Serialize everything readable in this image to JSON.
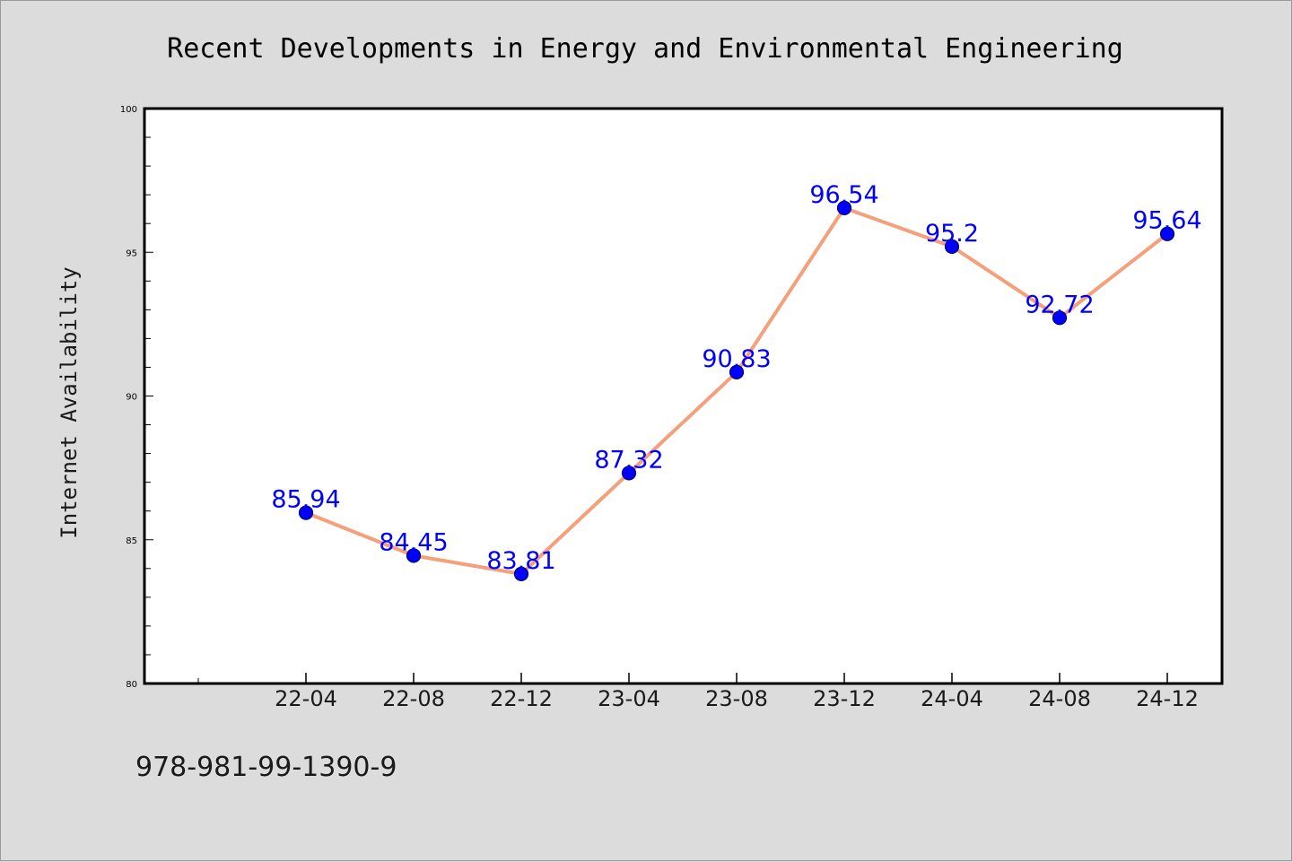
{
  "chart_data": {
    "type": "line",
    "title": "Recent Developments in Energy and Environmental Engineering",
    "ylabel": "Internet Availability",
    "xlabel": "",
    "categories": [
      "22-04",
      "22-08",
      "22-12",
      "23-04",
      "23-08",
      "23-12",
      "24-04",
      "24-08",
      "24-12"
    ],
    "series": [
      {
        "values": [
          85.94,
          84.45,
          83.81,
          87.32,
          90.83,
          96.54,
          95.2,
          92.72,
          95.64
        ],
        "labels": [
          "85.94",
          "84.45",
          "83.81",
          "87.32",
          "90.83",
          "96.54",
          "95.2",
          "92.72",
          "95.64"
        ]
      }
    ],
    "ylim": [
      80,
      100
    ],
    "yticks": [
      80,
      85,
      90,
      95,
      100
    ],
    "grid": false,
    "colors": {
      "line": "#f4a07a",
      "marker": "#0000ff",
      "label": "#0000ff",
      "background": "#dcdcdc",
      "plot_bg": "#ffffff"
    }
  },
  "footer_text": "978-981-99-1390-9"
}
